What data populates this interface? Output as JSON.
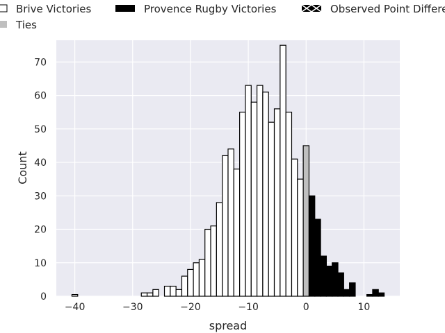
{
  "chart_data": {
    "type": "bar",
    "title": "",
    "xlabel": "spread",
    "ylabel": "Count",
    "xlim": [
      -43.2,
      16.2
    ],
    "ylim": [
      0,
      76.5
    ],
    "xticks": [
      -40,
      -30,
      -20,
      -10,
      0,
      10
    ],
    "yticks": [
      0,
      10,
      20,
      30,
      40,
      50,
      60,
      70
    ],
    "grid": true,
    "bin_width": 1,
    "legend_position": "top, above plot",
    "colors": {
      "plot_background": "#eaeaf2",
      "grid": "#ffffff",
      "brive": "#ffffff",
      "provence": "#000000",
      "ties": "#bfbfbf",
      "bar_edge": "#000000"
    },
    "legend": [
      {
        "label": "Brive Victories",
        "swatch": "brive"
      },
      {
        "label": "Provence Rugby Victories",
        "swatch": "provence"
      },
      {
        "label": "Observed Point Differential",
        "swatch": "observed"
      },
      {
        "label": "Ties",
        "swatch": "ties"
      }
    ],
    "series": [
      {
        "name": "Brive Victories",
        "bins": [
          [
            -40,
            0.5
          ],
          [
            -28,
            1
          ],
          [
            -27,
            1
          ],
          [
            -26,
            2
          ],
          [
            -24,
            3
          ],
          [
            -23,
            3
          ],
          [
            -22,
            2
          ],
          [
            -21,
            6
          ],
          [
            -20,
            8
          ],
          [
            -19,
            10
          ],
          [
            -18,
            11
          ],
          [
            -17,
            20
          ],
          [
            -16,
            21
          ],
          [
            -15,
            28
          ],
          [
            -14,
            42
          ],
          [
            -13,
            44
          ],
          [
            -12,
            38
          ],
          [
            -11,
            55
          ],
          [
            -10,
            63
          ],
          [
            -9,
            58
          ],
          [
            -8,
            63
          ],
          [
            -7,
            61
          ],
          [
            -6,
            52
          ],
          [
            -5,
            56
          ],
          [
            -4,
            75
          ],
          [
            -3,
            55
          ],
          [
            -2,
            41
          ],
          [
            -1,
            35
          ]
        ]
      },
      {
        "name": "Ties",
        "bins": [
          [
            0,
            45
          ]
        ]
      },
      {
        "name": "Provence Rugby Victories",
        "bins": [
          [
            1,
            30
          ],
          [
            2,
            23
          ],
          [
            3,
            12
          ],
          [
            4,
            9
          ],
          [
            5,
            10
          ],
          [
            6,
            7
          ],
          [
            7,
            2
          ],
          [
            8,
            4
          ],
          [
            11,
            0.5
          ],
          [
            12,
            2
          ],
          [
            13,
            1
          ]
        ]
      }
    ]
  }
}
